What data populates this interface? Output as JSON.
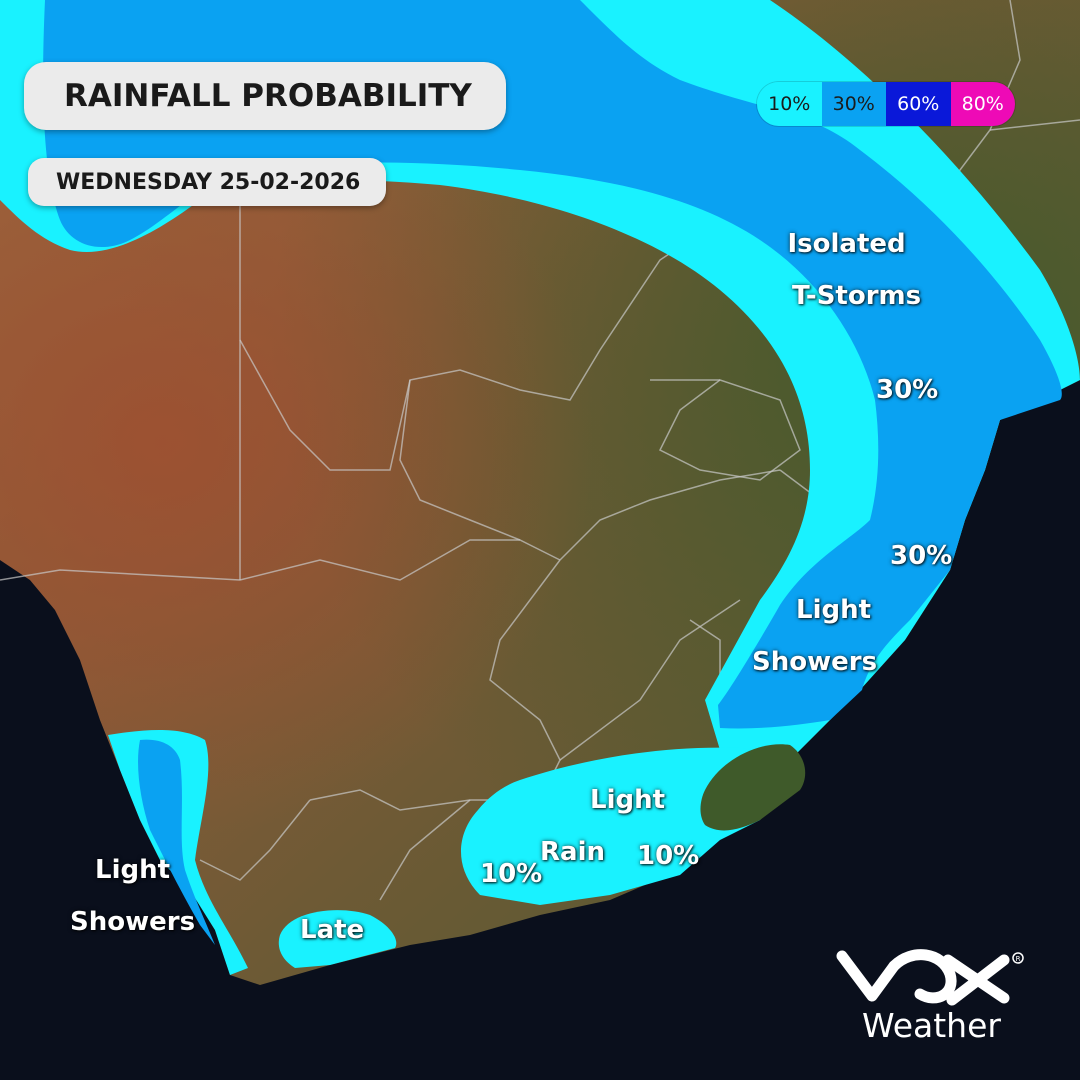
{
  "header": {
    "title": "RAINFALL PROBABILITY",
    "date": "WEDNESDAY 25-02-2026"
  },
  "legend": [
    {
      "label": "10%",
      "color": "#19f2ff"
    },
    {
      "label": "30%",
      "color": "#0aa2f2"
    },
    {
      "label": "60%",
      "color": "#0a18d9"
    },
    {
      "label": "80%",
      "color": "#ee0ab6"
    }
  ],
  "labels": {
    "isolated_tstorms": [
      "Isolated",
      "T-Storms"
    ],
    "pct_30_north": "30%",
    "pct_30_east": "30%",
    "light_showers_east": [
      "Light",
      "Showers"
    ],
    "light_rain": [
      "Light",
      "Rain"
    ],
    "pct_10_south_a": "10%",
    "pct_10_south_b": "10%",
    "light_showers_west": [
      "Light",
      "Showers"
    ],
    "late": "Late"
  },
  "brand": {
    "logo_icon": "vox-logo",
    "name": "Weather"
  }
}
